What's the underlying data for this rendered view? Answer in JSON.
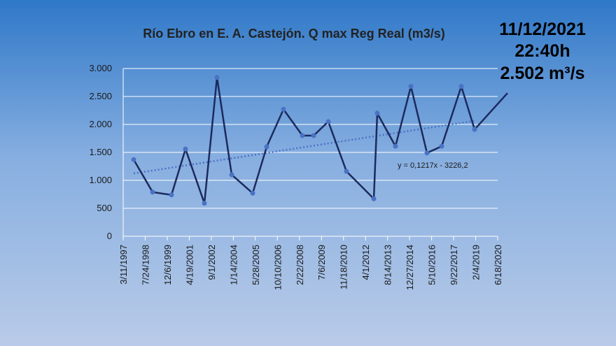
{
  "chart_data": {
    "type": "line",
    "title": "Río Ebro en E. A. Castejón. Q max Reg Real (m3/s)",
    "annotations": [
      "11/12/2021",
      "22:40h",
      "2.502 m³/s"
    ],
    "x": [
      35738,
      36167,
      36596,
      36914,
      37343,
      37629,
      37963,
      38439,
      38757,
      39138,
      39567,
      39822,
      40155,
      40568,
      41188,
      41267,
      41680,
      42030,
      42395,
      42729,
      43174,
      43476,
      44222
    ],
    "series": [
      {
        "name": "Q max",
        "color": "#1c2a5e",
        "marker_color": "#4a72c4",
        "values": [
          1370,
          790,
          740,
          1560,
          590,
          2840,
          1100,
          770,
          1600,
          2270,
          1800,
          1800,
          2050,
          1160,
          670,
          2200,
          1610,
          2680,
          1490,
          1610,
          2680,
          1910,
          2560
        ]
      }
    ],
    "trendline": {
      "slope": 0.1217,
      "intercept": -3226.2,
      "label": "y = 0,1217x - 3226,2",
      "color": "#4a72c4"
    },
    "xlim": [
      35500,
      44000
    ],
    "xticks": [
      {
        "value": 35500,
        "label": "3/11/1997"
      },
      {
        "value": 36000,
        "label": "7/24/1998"
      },
      {
        "value": 36500,
        "label": "12/6/1999"
      },
      {
        "value": 37000,
        "label": "4/19/2001"
      },
      {
        "value": 37500,
        "label": "9/1/2002"
      },
      {
        "value": 38000,
        "label": "1/14/2004"
      },
      {
        "value": 38500,
        "label": "5/28/2005"
      },
      {
        "value": 39000,
        "label": "10/10/2006"
      },
      {
        "value": 39500,
        "label": "2/22/2008"
      },
      {
        "value": 40000,
        "label": "7/6/2009"
      },
      {
        "value": 40500,
        "label": "11/18/2010"
      },
      {
        "value": 41000,
        "label": "4/1/2012"
      },
      {
        "value": 41500,
        "label": "8/14/2013"
      },
      {
        "value": 42000,
        "label": "12/27/2014"
      },
      {
        "value": 42500,
        "label": "5/10/2016"
      },
      {
        "value": 43000,
        "label": "9/22/2017"
      },
      {
        "value": 43500,
        "label": "2/4/2019"
      },
      {
        "value": 44000,
        "label": "6/18/2020"
      }
    ],
    "ylim": [
      0,
      3000
    ],
    "yticks": [
      0,
      500,
      {
        "value": 1000,
        "label": "1.000"
      },
      {
        "value": 1500,
        "label": "1.500"
      },
      {
        "value": 2000,
        "label": "2.000"
      },
      {
        "value": 2500,
        "label": "2.500"
      },
      {
        "value": 3000,
        "label": "3.000"
      }
    ],
    "grid": true
  }
}
